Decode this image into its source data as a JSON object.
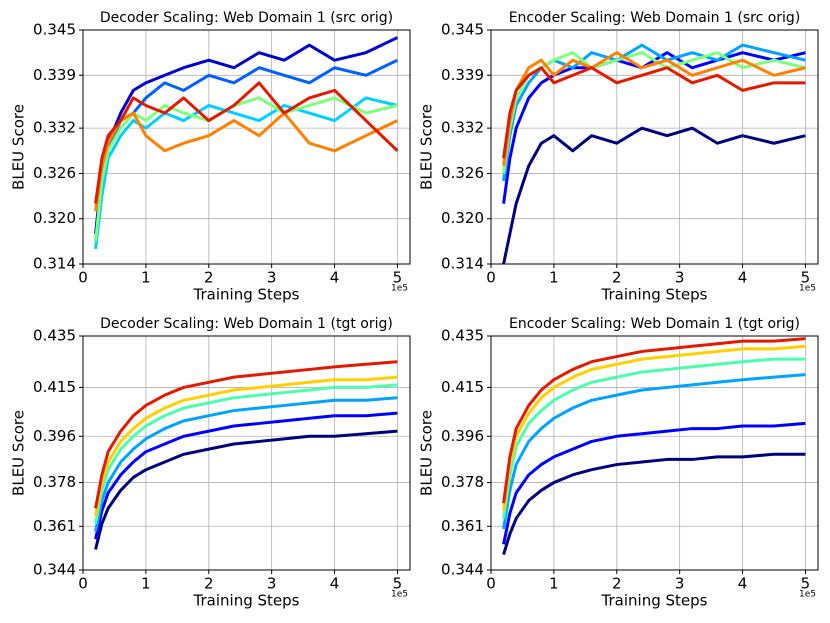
{
  "chart_data": [
    {
      "type": "line",
      "title": "Decoder Scaling: Web Domain 1 (src orig)",
      "xlabel": "Training Steps",
      "ylabel": "BLEU Score",
      "x_offset_label": "1e5",
      "x": [
        0.2,
        0.3,
        0.4,
        0.6,
        0.8,
        1.0,
        1.3,
        1.6,
        2.0,
        2.4,
        2.8,
        3.2,
        3.6,
        4.0,
        4.5,
        5.0
      ],
      "xlim": [
        0,
        5.2
      ],
      "xticks": [
        0,
        1,
        2,
        3,
        4,
        5
      ],
      "ylim": [
        0.314,
        0.345
      ],
      "yticks": [
        0.314,
        {
          "value": 0.32,
          "label": "0.320"
        },
        0.326,
        0.332,
        0.339,
        0.345
      ],
      "grid": true,
      "series": [
        {
          "color": "#0000cd",
          "values": [
            0.318,
            0.326,
            0.33,
            0.334,
            0.337,
            0.338,
            0.339,
            0.34,
            0.341,
            0.34,
            0.342,
            0.341,
            0.343,
            0.341,
            0.342,
            0.344
          ]
        },
        {
          "color": "#0060ff",
          "values": [
            0.317,
            0.324,
            0.329,
            0.333,
            0.334,
            0.336,
            0.338,
            0.337,
            0.339,
            0.338,
            0.34,
            0.339,
            0.338,
            0.34,
            0.339,
            0.341
          ]
        },
        {
          "color": "#00d0ff",
          "values": [
            0.316,
            0.323,
            0.328,
            0.331,
            0.333,
            0.332,
            0.334,
            0.333,
            0.335,
            0.334,
            0.333,
            0.335,
            0.334,
            0.333,
            0.336,
            0.335
          ]
        },
        {
          "color": "#7dff7a",
          "values": [
            0.317,
            0.325,
            0.329,
            0.332,
            0.334,
            0.333,
            0.335,
            0.334,
            0.333,
            0.335,
            0.336,
            0.334,
            0.335,
            0.336,
            0.334,
            0.335
          ]
        },
        {
          "color": "#ff8000",
          "values": [
            0.321,
            0.327,
            0.33,
            0.333,
            0.334,
            0.331,
            0.329,
            0.33,
            0.331,
            0.333,
            0.331,
            0.334,
            0.33,
            0.329,
            0.331,
            0.333
          ]
        },
        {
          "color": "#e41a00",
          "values": [
            0.322,
            0.328,
            0.331,
            0.333,
            0.336,
            0.335,
            0.334,
            0.336,
            0.333,
            0.335,
            0.338,
            0.334,
            0.336,
            0.337,
            0.333,
            0.329
          ]
        }
      ]
    },
    {
      "type": "line",
      "title": "Encoder Scaling: Web Domain 1 (src orig)",
      "xlabel": "Training Steps",
      "ylabel": "BLEU Score",
      "x_offset_label": "1e5",
      "x": [
        0.2,
        0.3,
        0.4,
        0.6,
        0.8,
        1.0,
        1.3,
        1.6,
        2.0,
        2.4,
        2.8,
        3.2,
        3.6,
        4.0,
        4.5,
        5.0
      ],
      "xlim": [
        0,
        5.2
      ],
      "xticks": [
        0,
        1,
        2,
        3,
        4,
        5
      ],
      "ylim": [
        0.314,
        0.345
      ],
      "yticks": [
        0.314,
        {
          "value": 0.32,
          "label": "0.320"
        },
        0.326,
        0.332,
        0.339,
        0.345
      ],
      "grid": true,
      "series": [
        {
          "color": "#00007f",
          "values": [
            0.314,
            0.318,
            0.322,
            0.327,
            0.33,
            0.331,
            0.329,
            0.331,
            0.33,
            0.332,
            0.331,
            0.332,
            0.33,
            0.331,
            0.33,
            0.331
          ]
        },
        {
          "color": "#0000ff",
          "values": [
            0.322,
            0.328,
            0.332,
            0.336,
            0.338,
            0.339,
            0.34,
            0.34,
            0.341,
            0.34,
            0.342,
            0.34,
            0.341,
            0.342,
            0.341,
            0.342
          ]
        },
        {
          "color": "#00a4ff",
          "values": [
            0.325,
            0.331,
            0.335,
            0.338,
            0.34,
            0.341,
            0.34,
            0.342,
            0.341,
            0.343,
            0.341,
            0.342,
            0.341,
            0.343,
            0.342,
            0.341
          ]
        },
        {
          "color": "#7dff7a",
          "values": [
            0.326,
            0.332,
            0.336,
            0.339,
            0.34,
            0.341,
            0.342,
            0.34,
            0.341,
            0.342,
            0.34,
            0.341,
            0.342,
            0.34,
            0.341,
            0.34
          ]
        },
        {
          "color": "#ff8000",
          "values": [
            0.327,
            0.333,
            0.337,
            0.34,
            0.341,
            0.339,
            0.341,
            0.34,
            0.342,
            0.34,
            0.341,
            0.339,
            0.34,
            0.341,
            0.339,
            0.34
          ]
        },
        {
          "color": "#e41a00",
          "values": [
            0.328,
            0.334,
            0.337,
            0.339,
            0.34,
            0.338,
            0.339,
            0.34,
            0.338,
            0.339,
            0.34,
            0.338,
            0.339,
            0.337,
            0.338,
            0.338
          ]
        }
      ]
    },
    {
      "type": "line",
      "title": "Decoder Scaling: Web Domain 1 (tgt orig)",
      "xlabel": "Training Steps",
      "ylabel": "BLEU Score",
      "x_offset_label": "1e5",
      "x": [
        0.2,
        0.3,
        0.4,
        0.6,
        0.8,
        1.0,
        1.3,
        1.6,
        2.0,
        2.4,
        2.8,
        3.2,
        3.6,
        4.0,
        4.5,
        5.0
      ],
      "xlim": [
        0,
        5.2
      ],
      "xticks": [
        0,
        1,
        2,
        3,
        4,
        5
      ],
      "ylim": [
        0.344,
        0.435
      ],
      "yticks": [
        0.344,
        0.361,
        0.378,
        0.396,
        0.415,
        0.435
      ],
      "grid": true,
      "series": [
        {
          "color": "#00007f",
          "values": [
            0.352,
            0.362,
            0.368,
            0.375,
            0.38,
            0.383,
            0.386,
            0.389,
            0.391,
            0.393,
            0.394,
            0.395,
            0.396,
            0.396,
            0.397,
            0.398
          ]
        },
        {
          "color": "#0000ff",
          "values": [
            0.356,
            0.367,
            0.374,
            0.381,
            0.386,
            0.39,
            0.393,
            0.396,
            0.398,
            0.4,
            0.401,
            0.402,
            0.403,
            0.404,
            0.404,
            0.405
          ]
        },
        {
          "color": "#00a4ff",
          "values": [
            0.359,
            0.371,
            0.378,
            0.386,
            0.391,
            0.395,
            0.399,
            0.402,
            0.404,
            0.406,
            0.407,
            0.408,
            0.409,
            0.41,
            0.41,
            0.411
          ]
        },
        {
          "color": "#49ffad",
          "values": [
            0.362,
            0.375,
            0.383,
            0.391,
            0.396,
            0.4,
            0.404,
            0.407,
            0.409,
            0.411,
            0.412,
            0.413,
            0.414,
            0.415,
            0.415,
            0.416
          ]
        },
        {
          "color": "#ffd000",
          "values": [
            0.365,
            0.378,
            0.386,
            0.394,
            0.399,
            0.403,
            0.407,
            0.41,
            0.412,
            0.414,
            0.415,
            0.416,
            0.417,
            0.418,
            0.418,
            0.419
          ]
        },
        {
          "color": "#e41a00",
          "values": [
            0.368,
            0.381,
            0.39,
            0.398,
            0.404,
            0.408,
            0.412,
            0.415,
            0.417,
            0.419,
            0.42,
            0.421,
            0.422,
            0.423,
            0.424,
            0.425
          ]
        }
      ]
    },
    {
      "type": "line",
      "title": "Encoder Scaling: Web Domain 1 (tgt orig)",
      "xlabel": "Training Steps",
      "ylabel": "BLEU Score",
      "x_offset_label": "1e5",
      "x": [
        0.2,
        0.3,
        0.4,
        0.6,
        0.8,
        1.0,
        1.3,
        1.6,
        2.0,
        2.4,
        2.8,
        3.2,
        3.6,
        4.0,
        4.5,
        5.0
      ],
      "xlim": [
        0,
        5.2
      ],
      "xticks": [
        0,
        1,
        2,
        3,
        4,
        5
      ],
      "ylim": [
        0.344,
        0.435
      ],
      "yticks": [
        0.344,
        0.361,
        0.378,
        0.396,
        0.415,
        0.435
      ],
      "grid": true,
      "series": [
        {
          "color": "#00007f",
          "values": [
            0.35,
            0.358,
            0.364,
            0.371,
            0.375,
            0.378,
            0.381,
            0.383,
            0.385,
            0.386,
            0.387,
            0.387,
            0.388,
            0.388,
            0.389,
            0.389
          ]
        },
        {
          "color": "#0000ff",
          "values": [
            0.354,
            0.366,
            0.374,
            0.381,
            0.385,
            0.388,
            0.391,
            0.394,
            0.396,
            0.397,
            0.398,
            0.399,
            0.399,
            0.4,
            0.4,
            0.401
          ]
        },
        {
          "color": "#00a4ff",
          "values": [
            0.36,
            0.375,
            0.385,
            0.394,
            0.399,
            0.403,
            0.407,
            0.41,
            0.412,
            0.414,
            0.415,
            0.416,
            0.417,
            0.418,
            0.419,
            0.42
          ]
        },
        {
          "color": "#49ffad",
          "values": [
            0.364,
            0.381,
            0.392,
            0.401,
            0.406,
            0.41,
            0.414,
            0.417,
            0.419,
            0.421,
            0.422,
            0.423,
            0.424,
            0.425,
            0.426,
            0.426
          ]
        },
        {
          "color": "#ffd000",
          "values": [
            0.367,
            0.385,
            0.396,
            0.405,
            0.411,
            0.415,
            0.419,
            0.422,
            0.424,
            0.426,
            0.427,
            0.428,
            0.429,
            0.43,
            0.43,
            0.431
          ]
        },
        {
          "color": "#e41a00",
          "values": [
            0.37,
            0.388,
            0.399,
            0.408,
            0.414,
            0.418,
            0.422,
            0.425,
            0.427,
            0.429,
            0.43,
            0.431,
            0.432,
            0.433,
            0.433,
            0.434
          ]
        }
      ]
    }
  ]
}
